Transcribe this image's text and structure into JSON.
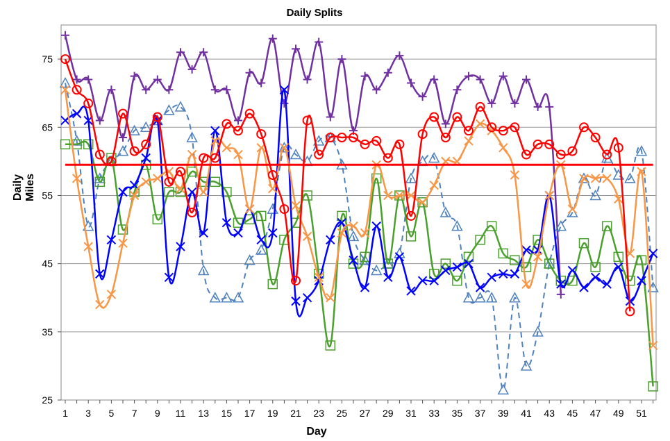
{
  "chart_data": {
    "type": "line",
    "title": "Daily Splits",
    "xlabel": "Day",
    "ylabel": [
      "Daily",
      "Miles"
    ],
    "xlim": [
      1,
      52
    ],
    "ylim": [
      25,
      80
    ],
    "x_ticks": [
      1,
      3,
      5,
      7,
      9,
      11,
      13,
      15,
      17,
      19,
      21,
      23,
      25,
      27,
      29,
      31,
      33,
      35,
      37,
      39,
      41,
      43,
      45,
      47,
      49,
      51
    ],
    "y_ticks": [
      25,
      35,
      45,
      55,
      65,
      75
    ],
    "grid": "horizontal",
    "series": [
      {
        "color": "#7030A0",
        "marker": "plus",
        "dashed": false,
        "values": [
          78.5,
          72,
          72,
          66,
          70.5,
          63.5,
          72.5,
          70.5,
          72,
          70.5,
          76,
          73.5,
          76,
          70.5,
          70.5,
          66,
          73,
          71.5,
          78,
          68.5,
          76.5,
          72,
          77.5,
          66.5,
          75,
          64.5,
          72.5,
          70.5,
          73,
          75.5,
          71.5,
          69.5,
          72,
          65.5,
          70.5,
          72.5,
          72,
          68.5,
          72.5,
          68.5,
          72,
          68,
          68,
          40.5
        ]
      },
      {
        "color": "#4F81BD",
        "marker": "triangle",
        "dashed": true,
        "values": [
          71.5,
          63,
          50.5,
          57.5,
          60,
          61.5,
          64.5,
          65,
          66,
          67.5,
          68,
          63.5,
          44,
          40,
          40,
          40,
          45.5,
          47,
          53,
          62,
          61,
          60,
          63,
          63.5,
          59.5,
          49,
          45.5,
          44,
          45,
          46.5,
          57.5,
          60,
          60.5,
          52.5,
          50.5,
          40,
          40,
          40,
          26.5,
          40,
          30,
          35,
          45,
          50.5,
          52.5,
          57.5,
          55,
          60.5,
          58,
          57.5,
          61.5,
          41.5
        ]
      },
      {
        "color": "#4AA02C",
        "marker": "square",
        "dashed": false,
        "values": [
          62.5,
          62.5,
          62.5,
          57,
          60.5,
          50,
          55.5,
          59.5,
          51.5,
          55.5,
          55.5,
          58.5,
          57,
          57,
          55.5,
          51,
          51.5,
          52,
          42,
          48.5,
          51,
          55,
          43.5,
          33,
          52,
          45,
          46,
          57.5,
          45,
          55,
          49,
          54,
          43.5,
          45,
          42.5,
          46,
          48.5,
          50.5,
          46.5,
          45.5,
          44.5,
          48.5,
          45,
          42.5,
          42.5,
          48,
          44.5,
          50.5,
          46,
          42.5,
          45.5,
          27
        ]
      },
      {
        "color": "#0000FF",
        "marker": "x",
        "dashed": false,
        "values": [
          66,
          67,
          66,
          43.5,
          48.5,
          55.5,
          56.5,
          60.5,
          66,
          43,
          47.5,
          55.5,
          49.5,
          64.5,
          51,
          49.5,
          53,
          48.5,
          49.5,
          70.5,
          39.5,
          40,
          42.5,
          48.5,
          51,
          45.5,
          41.5,
          50.5,
          43,
          46,
          41,
          42.5,
          42.5,
          44,
          44.5,
          45,
          41.5,
          43,
          43.5,
          43.5,
          47,
          47,
          55,
          42,
          44,
          41.5,
          43,
          42,
          44.5,
          39.5,
          42.5,
          46.5
        ]
      },
      {
        "color": "#F79646",
        "marker": "x",
        "dashed": false,
        "values": [
          70.5,
          57.5,
          47.5,
          39,
          40.5,
          48,
          55,
          57,
          57.5,
          58.5,
          56,
          61,
          55.5,
          63,
          62,
          61,
          53,
          62,
          56,
          62,
          53.5,
          49,
          43,
          40,
          49.5,
          50.5,
          49.5,
          59.5,
          55,
          55,
          55,
          54,
          56.5,
          60,
          60,
          63,
          65.5,
          64.5,
          62,
          58,
          42,
          46,
          55,
          59.5,
          53,
          57.5,
          57.5,
          57.5,
          54.5,
          46.5,
          58.5,
          33
        ]
      },
      {
        "color": "#FF0000",
        "marker": "circle",
        "dashed": false,
        "values": [
          75,
          70.5,
          68.5,
          61,
          60,
          67,
          61.5,
          62.5,
          66.5,
          57,
          58.5,
          52.5,
          60.5,
          60.5,
          65.5,
          64.5,
          67,
          64,
          58,
          53,
          42.5,
          66,
          61,
          63.5,
          63.5,
          63.5,
          62.5,
          63,
          60.5,
          62.5,
          52,
          64,
          66.5,
          63.5,
          66.5,
          64.5,
          68,
          65,
          64.5,
          65,
          61,
          62.5,
          62.5,
          61,
          61.5,
          65,
          63.5,
          61,
          62,
          38
        ]
      },
      {
        "color": "#FF0000",
        "marker": "none",
        "dashed": false,
        "width": 3,
        "values": [
          59.5,
          59.5,
          59.5,
          59.5,
          59.5,
          59.5,
          59.5,
          59.5,
          59.5,
          59.5,
          59.5,
          59.5,
          59.5,
          59.5,
          59.5,
          59.5,
          59.5,
          59.5,
          59.5,
          59.5,
          59.5,
          59.5,
          59.5,
          59.5,
          59.5,
          59.5,
          59.5,
          59.5,
          59.5,
          59.5,
          59.5,
          59.5,
          59.5,
          59.5,
          59.5,
          59.5,
          59.5,
          59.5,
          59.5,
          59.5,
          59.5,
          59.5,
          59.5,
          59.5,
          59.5,
          59.5,
          59.5,
          59.5,
          59.5,
          59.5,
          59.5,
          59.5
        ]
      }
    ]
  }
}
